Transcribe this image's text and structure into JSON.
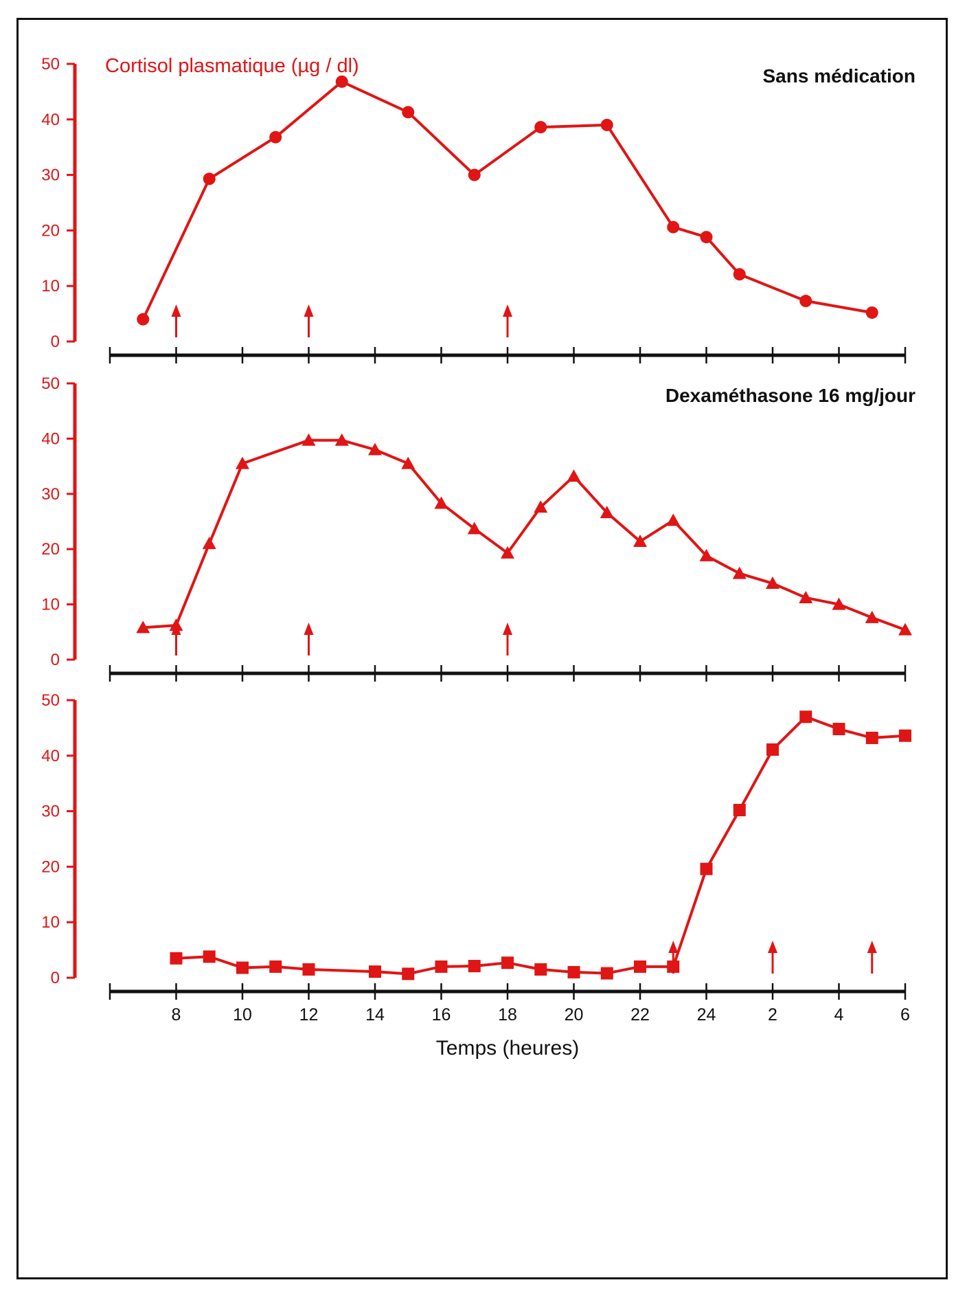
{
  "colors": {
    "series": "#e01515",
    "axis": "#111111",
    "text": "#111111"
  },
  "chart_data": {
    "type": "line",
    "ylabel": "Cortisol plasmatique (µg / dl)",
    "xlabel": "Temps (heures)",
    "x_ticks": [
      {
        "t": 8,
        "label": "8"
      },
      {
        "t": 10,
        "label": "10"
      },
      {
        "t": 12,
        "label": "12"
      },
      {
        "t": 14,
        "label": "14"
      },
      {
        "t": 16,
        "label": "16"
      },
      {
        "t": 18,
        "label": "18"
      },
      {
        "t": 20,
        "label": "20"
      },
      {
        "t": 22,
        "label": "22"
      },
      {
        "t": 24,
        "label": "24"
      },
      {
        "t": 26,
        "label": "2"
      },
      {
        "t": 28,
        "label": "4"
      },
      {
        "t": 30,
        "label": "6"
      }
    ],
    "xlim": [
      6,
      30
    ],
    "ylim": [
      0,
      50
    ],
    "yticks": [
      0,
      10,
      20,
      30,
      40,
      50
    ],
    "grid": false,
    "panels": [
      {
        "title": "Sans médication",
        "marker": "circle",
        "arrows_at": [
          8,
          12,
          18
        ],
        "x": [
          7,
          9,
          11,
          13,
          15,
          17,
          19,
          21,
          23,
          24,
          25,
          27,
          29
        ],
        "values": [
          4,
          29.3,
          36.8,
          46.8,
          41.3,
          30,
          38.6,
          39,
          20.6,
          18.8,
          12.1,
          7.3,
          5.2
        ]
      },
      {
        "title": "Dexaméthasone 16 mg/jour",
        "marker": "triangle",
        "arrows_at": [
          8,
          12,
          18
        ],
        "x": [
          7,
          8,
          9,
          10,
          12,
          13,
          14,
          15,
          16,
          17,
          18,
          19,
          20,
          21,
          22,
          23,
          24,
          25,
          26,
          27,
          28,
          29,
          30
        ],
        "values": [
          5.8,
          6.2,
          21,
          35.5,
          39.7,
          39.7,
          38,
          35.5,
          28.3,
          23.7,
          19.3,
          27.6,
          33.2,
          26.6,
          21.4,
          25.2,
          18.8,
          15.6,
          13.8,
          11.2,
          10,
          7.6,
          5.4
        ]
      },
      {
        "title": "",
        "marker": "square",
        "arrows_at": [
          23,
          26,
          29
        ],
        "x": [
          8,
          9,
          10,
          11,
          12,
          14,
          15,
          16,
          17,
          18,
          19,
          20,
          21,
          22,
          23,
          24,
          25,
          26,
          27,
          28,
          29,
          30
        ],
        "values": [
          3.5,
          3.8,
          1.8,
          2,
          1.5,
          1.1,
          0.7,
          2,
          2.1,
          2.7,
          1.5,
          1,
          0.8,
          2,
          2,
          19.6,
          30.2,
          41.1,
          47,
          44.8,
          43.2,
          43.6
        ]
      }
    ]
  }
}
